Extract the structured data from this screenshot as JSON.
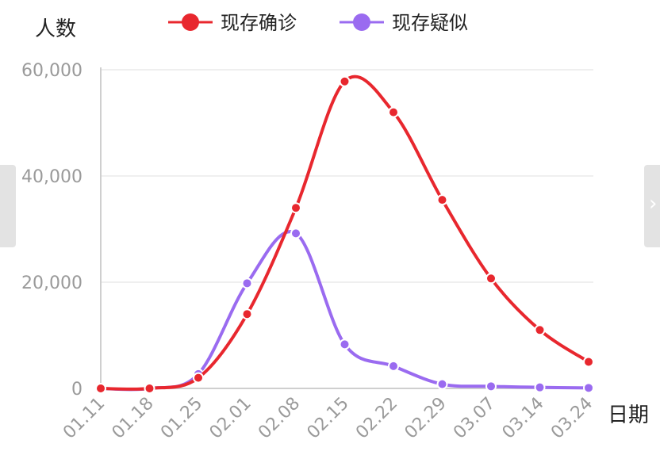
{
  "chart_data": {
    "type": "line",
    "ylabel": "人数",
    "xlabel": "日期",
    "categories": [
      "01.11",
      "01.18",
      "01.25",
      "02.01",
      "02.08",
      "02.15",
      "02.22",
      "02.29",
      "03.07",
      "03.14",
      "03.24"
    ],
    "yticks": [
      "60,000",
      "40,000",
      "20,000",
      "0"
    ],
    "ylim": [
      0,
      60000
    ],
    "grid": true,
    "legend_position": "top",
    "series": [
      {
        "name": "现存确诊",
        "color": "#e8272e",
        "values": [
          0,
          0,
          2000,
          14000,
          34000,
          57800,
          52000,
          35500,
          20700,
          11000,
          5000
        ]
      },
      {
        "name": "现存疑似",
        "color": "#9a6bf0",
        "values": [
          0,
          0,
          2700,
          19800,
          29200,
          8300,
          4200,
          800,
          400,
          200,
          100
        ]
      }
    ]
  },
  "ui": {
    "right_tab_icon": "chevron-right-icon",
    "right_tab_glyph": "›",
    "left_tab_icon": "chevron-left-icon"
  }
}
